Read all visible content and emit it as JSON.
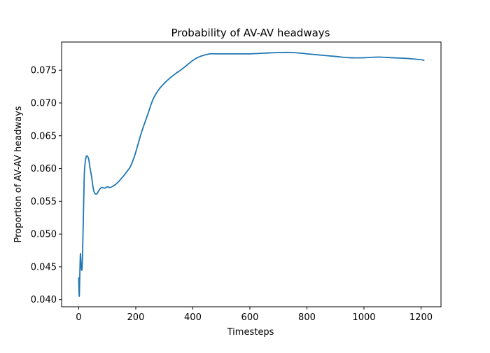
{
  "chart_data": {
    "type": "line",
    "title": "Probability of AV-AV headways",
    "xlabel": "Timesteps",
    "ylabel": "Proportion of AV-AV headways",
    "xlim": [
      -60,
      1270
    ],
    "ylim": [
      0.0389,
      0.0793
    ],
    "xticks": [
      0,
      200,
      400,
      600,
      800,
      1000,
      1200
    ],
    "xtick_labels": [
      "0",
      "200",
      "400",
      "600",
      "800",
      "1000",
      "1200"
    ],
    "yticks": [
      0.04,
      0.045,
      0.05,
      0.055,
      0.06,
      0.065,
      0.07,
      0.075
    ],
    "ytick_labels": [
      "0.040",
      "0.045",
      "0.050",
      "0.055",
      "0.060",
      "0.065",
      "0.070",
      "0.075"
    ],
    "grid": false,
    "line_color": "#1f77b4",
    "series": [
      {
        "name": "AV-AV headways",
        "x": [
          0,
          2,
          4,
          6,
          8,
          10,
          12,
          14,
          16,
          18,
          20,
          25,
          30,
          35,
          40,
          45,
          50,
          55,
          60,
          65,
          70,
          80,
          90,
          100,
          110,
          120,
          130,
          140,
          150,
          160,
          170,
          180,
          190,
          200,
          220,
          240,
          260,
          280,
          300,
          320,
          340,
          360,
          380,
          400,
          420,
          440,
          460,
          480,
          500,
          550,
          600,
          650,
          700,
          750,
          800,
          850,
          900,
          950,
          1000,
          1050,
          1100,
          1150,
          1200,
          1210
        ],
        "y": [
          0.0433,
          0.0405,
          0.044,
          0.047,
          0.0455,
          0.0445,
          0.045,
          0.048,
          0.052,
          0.056,
          0.0595,
          0.0616,
          0.0619,
          0.0614,
          0.06,
          0.0588,
          0.0572,
          0.0563,
          0.0561,
          0.0562,
          0.0566,
          0.0571,
          0.057,
          0.0572,
          0.0571,
          0.0573,
          0.0576,
          0.058,
          0.0585,
          0.059,
          0.0596,
          0.0602,
          0.0612,
          0.0625,
          0.0655,
          0.068,
          0.0705,
          0.072,
          0.073,
          0.0738,
          0.0745,
          0.0751,
          0.0758,
          0.0765,
          0.077,
          0.0773,
          0.0775,
          0.0775,
          0.0775,
          0.0775,
          0.0775,
          0.0776,
          0.0777,
          0.0777,
          0.0775,
          0.0773,
          0.0771,
          0.0769,
          0.0769,
          0.077,
          0.0769,
          0.0768,
          0.0766,
          0.0765
        ]
      }
    ]
  }
}
